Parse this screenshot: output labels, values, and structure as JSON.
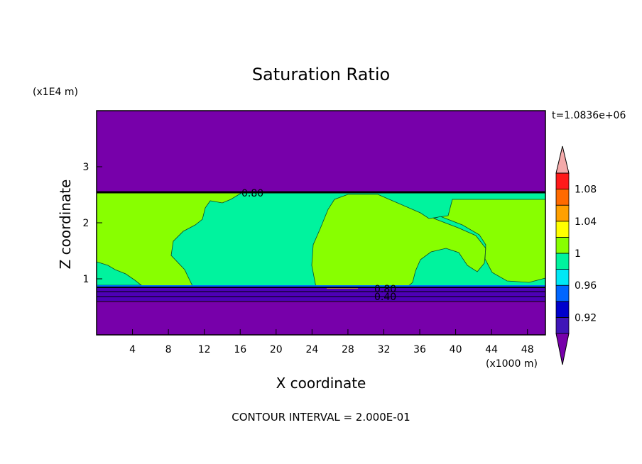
{
  "chart_data": {
    "type": "heatmap",
    "title": "Saturation Ratio",
    "subtitle": "t=1.0836e+06",
    "xlabel": "X coordinate",
    "ylabel": "Z coordinate",
    "x_units": "(x1000 m)",
    "y_units": "(x1E4 m)",
    "xlim": [
      0,
      50
    ],
    "ylim": [
      0,
      4
    ],
    "x_ticks": [
      "4",
      "8",
      "12",
      "16",
      "20",
      "24",
      "28",
      "32",
      "36",
      "40",
      "44",
      "48"
    ],
    "y_ticks": [
      "1",
      "2",
      "3"
    ],
    "colorbar": {
      "levels": [
        0.9,
        0.92,
        0.94,
        0.96,
        0.98,
        1.0,
        1.02,
        1.04,
        1.06,
        1.08,
        1.1
      ],
      "labels": [
        "0.92",
        "0.96",
        "1",
        "1.04",
        "1.08"
      ],
      "colors": [
        "#7700aa",
        "#3f15b8",
        "#0000cc",
        "#0066ff",
        "#00e8f5",
        "#00f39e",
        "#88ff00",
        "#ffff00",
        "#ffa000",
        "#ff6a00",
        "#ff1a1a",
        "#f4aaaa"
      ],
      "extend": "both"
    },
    "contour_labels": [
      "0.80",
      "0.80",
      "0.40"
    ],
    "footer": "CONTOUR INTERVAL = 2.000E-01",
    "grid": false,
    "legend_placement": "right"
  }
}
